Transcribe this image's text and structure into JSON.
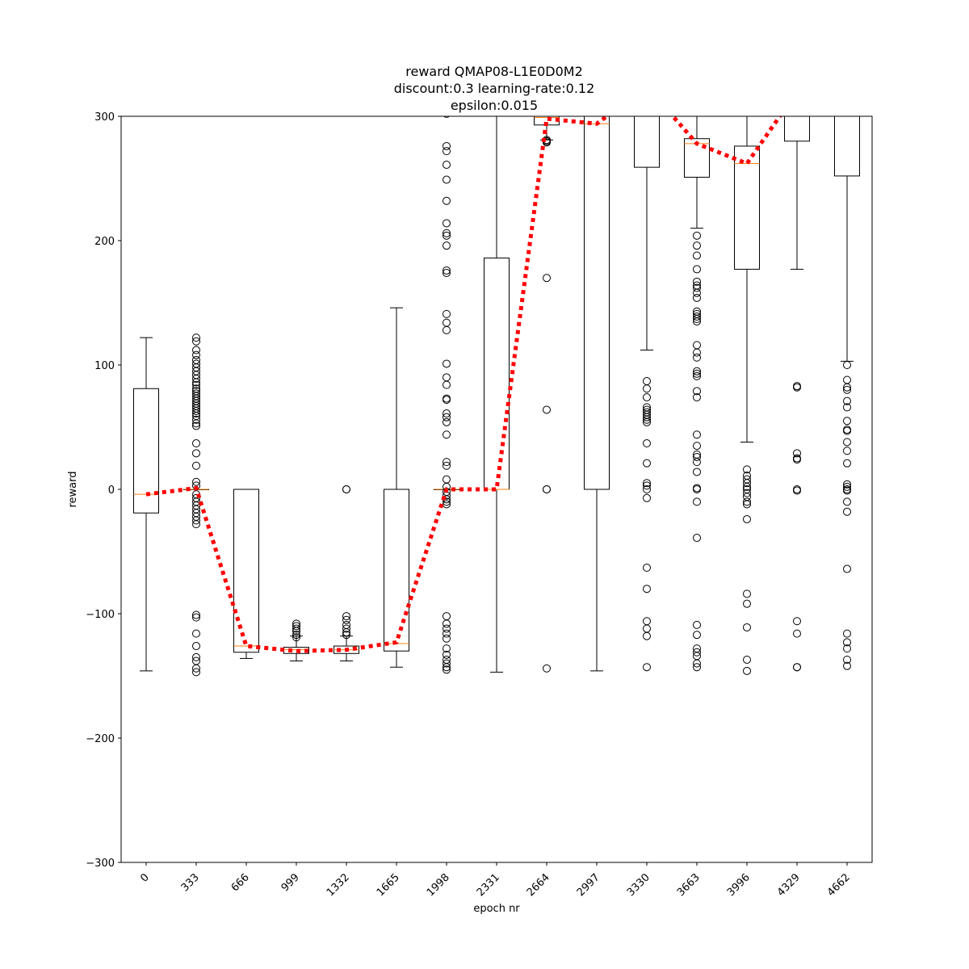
{
  "chart_data": {
    "type": "box",
    "title": [
      "reward QMAP08-L1E0D0M2",
      "discount:0.3 learning-rate:0.12",
      "epsilon:0.015"
    ],
    "xlabel": "epoch nr",
    "ylabel": "reward",
    "ylim": [
      -300,
      300
    ],
    "yticks": [
      -300,
      -200,
      -100,
      0,
      100,
      200,
      300
    ],
    "ytick_labels": [
      "−300",
      "−200",
      "−100",
      "0",
      "100",
      "200",
      "300"
    ],
    "categories": [
      "0",
      "333",
      "666",
      "999",
      "1332",
      "1665",
      "1998",
      "2331",
      "2664",
      "2997",
      "3330",
      "3663",
      "3996",
      "4329",
      "4662"
    ],
    "boxes": [
      {
        "whislo": -146,
        "q1": -19,
        "med": -4,
        "q3": 81,
        "whishi": 122,
        "fliers": []
      },
      {
        "whislo": 0,
        "q1": 0,
        "med": 0,
        "q3": 0,
        "whishi": 0,
        "fliers": [
          122,
          119,
          112,
          108,
          104,
          101,
          98,
          95,
          92,
          89,
          86,
          84,
          81,
          79,
          77,
          75,
          73,
          71,
          69,
          67,
          65,
          63,
          61,
          59,
          56,
          53,
          51,
          37,
          29,
          19,
          6,
          3,
          -4,
          -7,
          -10,
          -13,
          -16,
          -19,
          -22,
          -25,
          -28,
          -101,
          -103,
          -116,
          -126,
          -135,
          -138,
          -144,
          -147
        ]
      },
      {
        "whislo": -136,
        "q1": -131,
        "med": -126,
        "q3": 0,
        "whishi": 0,
        "fliers": []
      },
      {
        "whislo": -138,
        "q1": -132,
        "med": -129,
        "q3": -127,
        "whishi": -118,
        "fliers": [
          -108,
          -110,
          -112,
          -114,
          -117,
          -119
        ]
      },
      {
        "whislo": -138,
        "q1": -132,
        "med": -129,
        "q3": -126,
        "whishi": -118,
        "fliers": [
          0,
          0,
          -102,
          -105,
          -109,
          -112,
          -115,
          -117
        ]
      },
      {
        "whislo": -143,
        "q1": -130,
        "med": -124,
        "q3": 0,
        "whishi": 146,
        "fliers": []
      },
      {
        "whislo": 0,
        "q1": 0,
        "med": 0,
        "q3": 0,
        "whishi": 0,
        "fliers": [
          302,
          276,
          272,
          261,
          249,
          232,
          214,
          206,
          204,
          196,
          176,
          174,
          141,
          134,
          128,
          101,
          90,
          84,
          73,
          72,
          61,
          58,
          54,
          44,
          22,
          19,
          8,
          2,
          -2,
          -5,
          -8,
          -10,
          -12,
          -102,
          -108,
          -112,
          -116,
          -120,
          -128,
          -133,
          -137,
          -140,
          -143,
          -145
        ]
      },
      {
        "whislo": -147,
        "q1": 0,
        "med": 0,
        "q3": 186,
        "whishi": 300,
        "fliers": []
      },
      {
        "whislo": 281,
        "q1": 293,
        "med": 299,
        "q3": 300,
        "whishi": 300,
        "fliers": [
          281,
          280,
          280,
          279,
          170,
          64,
          0,
          0,
          -144
        ]
      },
      {
        "whislo": -146,
        "q1": 0,
        "med": 294,
        "q3": 300,
        "whishi": 300,
        "fliers": []
      },
      {
        "whislo": 112,
        "q1": 259,
        "med": 300,
        "q3": 300,
        "whishi": 300,
        "fliers": [
          87,
          81,
          74,
          66,
          64,
          62,
          60,
          58,
          56,
          54,
          37,
          21,
          5,
          3,
          0,
          -7,
          -63,
          -80,
          -106,
          -112,
          -118,
          -143
        ]
      },
      {
        "whislo": 210,
        "q1": 251,
        "med": 278,
        "q3": 282,
        "whishi": 300,
        "fliers": [
          204,
          196,
          188,
          177,
          167,
          164,
          162,
          158,
          154,
          143,
          141,
          139,
          137,
          135,
          116,
          110,
          106,
          95,
          93,
          91,
          79,
          74,
          44,
          35,
          28,
          26,
          22,
          14,
          1,
          0,
          -10,
          -39,
          -109,
          -117,
          -128,
          -131,
          -134,
          -140,
          -143
        ]
      },
      {
        "whislo": 38,
        "q1": 177,
        "med": 262,
        "q3": 276,
        "whishi": 300,
        "fliers": [
          16,
          11,
          8,
          5,
          2,
          0,
          -3,
          -6,
          -10,
          -12,
          -24,
          -84,
          -92,
          -111,
          -137,
          -146
        ]
      },
      {
        "whislo": 177,
        "q1": 280,
        "med": 300,
        "q3": 300,
        "whishi": 300,
        "fliers": [
          83,
          82,
          29,
          25,
          24,
          0,
          -1,
          -106,
          -116,
          -143,
          -143
        ]
      },
      {
        "whislo": 103,
        "q1": 252,
        "med": 300,
        "q3": 300,
        "whishi": 300,
        "fliers": [
          100,
          88,
          82,
          80,
          71,
          66,
          55,
          48,
          47,
          38,
          31,
          21,
          4,
          2,
          0,
          -1,
          -10,
          -18,
          -64,
          -116,
          -123,
          -128,
          -137,
          -142
        ]
      }
    ],
    "mean_line": {
      "style": "red dotted",
      "color": "#ff0000",
      "values": [
        -4,
        1,
        -126,
        -130,
        -129,
        -123,
        0,
        0,
        298,
        294,
        324,
        278,
        262,
        320,
        330
      ]
    },
    "median_color": "#ff7f0e",
    "grid": false,
    "legend": "none"
  }
}
